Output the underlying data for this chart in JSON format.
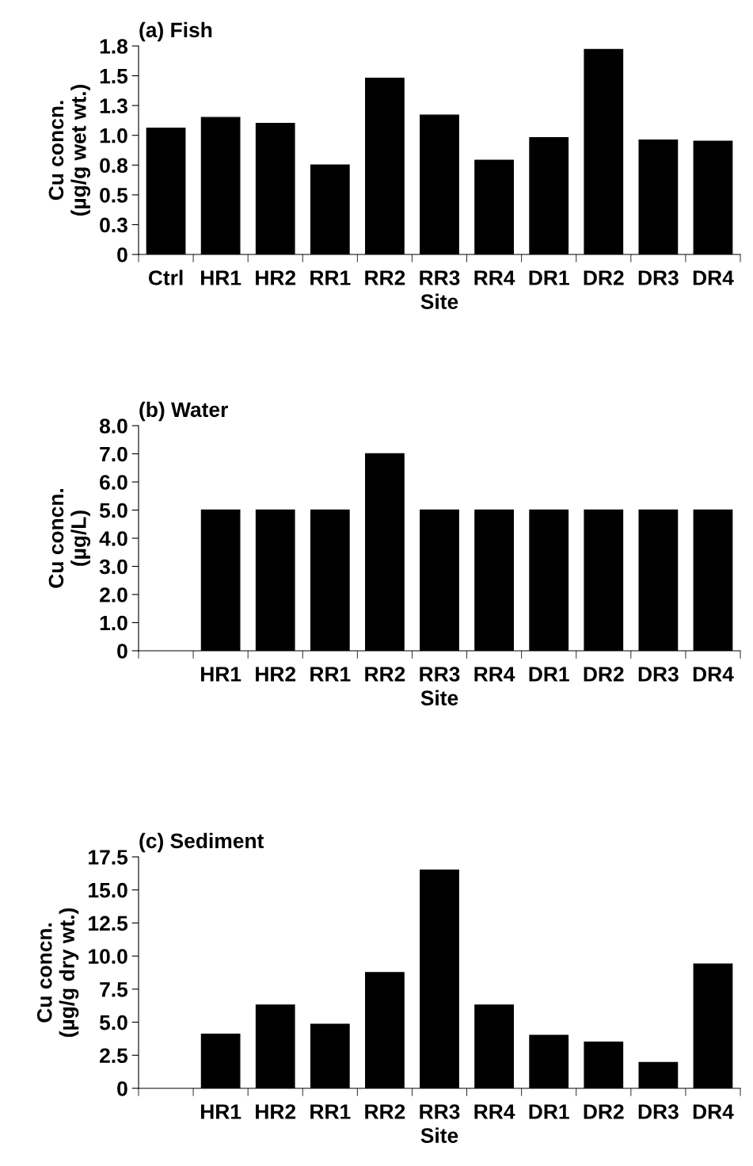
{
  "chart_data": [
    {
      "type": "bar",
      "title": "(a) Fish",
      "xlabel": "Site",
      "ylabel": "Cu concn.\n(µg/g wet wt.)",
      "categories": [
        "Ctrl",
        "HR1",
        "HR2",
        "RR1",
        "RR2",
        "RR3",
        "RR4",
        "DR1",
        "DR2",
        "DR3",
        "DR4"
      ],
      "values": [
        1.06,
        1.15,
        1.1,
        0.75,
        1.48,
        1.17,
        0.79,
        0.98,
        1.72,
        0.96,
        0.95
      ],
      "color": "#000000",
      "ylim": [
        0,
        1.75
      ],
      "yticks": [
        {
          "value": 0,
          "label": "0"
        },
        {
          "value": 0.25,
          "label": "0.3"
        },
        {
          "value": 0.5,
          "label": "0.5"
        },
        {
          "value": 0.75,
          "label": "0.8"
        },
        {
          "value": 1.0,
          "label": "1.0"
        },
        {
          "value": 1.25,
          "label": "1.3"
        },
        {
          "value": 1.5,
          "label": "1.5"
        },
        {
          "value": 1.75,
          "label": "1.8"
        }
      ],
      "grid": false,
      "legend": false
    },
    {
      "type": "bar",
      "title": "(b) Water",
      "xlabel": "Site",
      "ylabel": "Cu concn.\n(µg/L)",
      "categories": [
        null,
        "HR1",
        "HR2",
        "RR1",
        "RR2",
        "RR3",
        "RR4",
        "DR1",
        "DR2",
        "DR3",
        "DR4"
      ],
      "values": [
        null,
        5.0,
        5.0,
        5.0,
        7.0,
        5.0,
        5.0,
        5.0,
        5.0,
        5.0,
        5.0
      ],
      "color": "#000000",
      "ylim": [
        0,
        8
      ],
      "yticks": [
        {
          "value": 0,
          "label": "0"
        },
        {
          "value": 1,
          "label": "1.0"
        },
        {
          "value": 2,
          "label": "2.0"
        },
        {
          "value": 3,
          "label": "3.0"
        },
        {
          "value": 4,
          "label": "4.0"
        },
        {
          "value": 5,
          "label": "5.0"
        },
        {
          "value": 6,
          "label": "6.0"
        },
        {
          "value": 7,
          "label": "7.0"
        },
        {
          "value": 8,
          "label": "8.0"
        }
      ],
      "grid": false,
      "legend": false
    },
    {
      "type": "bar",
      "title": "(c) Sediment",
      "xlabel": "Site",
      "ylabel": "Cu concn.\n(µg/g dry wt.)",
      "categories": [
        null,
        "HR1",
        "HR2",
        "RR1",
        "RR2",
        "RR3",
        "RR4",
        "DR1",
        "DR2",
        "DR3",
        "DR4"
      ],
      "values": [
        null,
        4.1,
        6.3,
        4.85,
        8.75,
        16.5,
        6.3,
        4.0,
        3.5,
        1.95,
        9.4
      ],
      "color": "#000000",
      "ylim": [
        0,
        17.5
      ],
      "yticks": [
        {
          "value": 0,
          "label": "0"
        },
        {
          "value": 2.5,
          "label": "2.5"
        },
        {
          "value": 5,
          "label": "5.0"
        },
        {
          "value": 7.5,
          "label": "7.5"
        },
        {
          "value": 10,
          "label": "10.0"
        },
        {
          "value": 12.5,
          "label": "12.5"
        },
        {
          "value": 15,
          "label": "15.0"
        },
        {
          "value": 17.5,
          "label": "17.5"
        }
      ],
      "grid": false,
      "legend": false
    }
  ]
}
